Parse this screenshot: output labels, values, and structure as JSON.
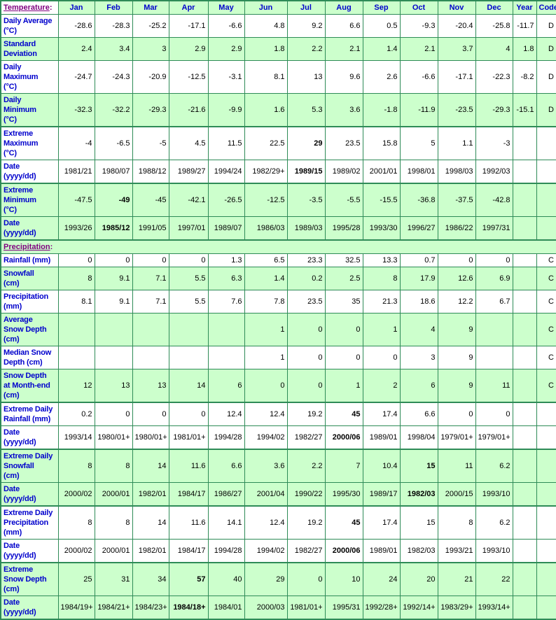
{
  "colors": {
    "border_green": "#2e8b57",
    "cell_green": "#ccffcc",
    "label_blue": "#0000cc",
    "section_purple": "#800080",
    "data_black": "#000000",
    "background_white": "#ffffff"
  },
  "table": {
    "temperature_label": "Temperature",
    "label_suffix": ":",
    "columns": [
      "Jan",
      "Feb",
      "Mar",
      "Apr",
      "May",
      "Jun",
      "Jul",
      "Aug",
      "Sep",
      "Oct",
      "Nov",
      "Dec",
      "Year",
      "Code"
    ],
    "rows": [
      {
        "type": "data",
        "lines": [
          "Daily Average",
          "(°C)"
        ],
        "bg": "white",
        "group_start": false,
        "bold": [],
        "values": [
          "-28.6",
          "-28.3",
          "-25.2",
          "-17.1",
          "-6.6",
          "4.8",
          "9.2",
          "6.6",
          "0.5",
          "-9.3",
          "-20.4",
          "-25.8",
          "-11.7",
          "D"
        ]
      },
      {
        "type": "data",
        "lines": [
          "Standard",
          "Deviation"
        ],
        "bg": "green",
        "group_start": false,
        "bold": [],
        "values": [
          "2.4",
          "3.4",
          "3",
          "2.9",
          "2.9",
          "1.8",
          "2.2",
          "2.1",
          "1.4",
          "2.1",
          "3.7",
          "4",
          "1.8",
          "D"
        ]
      },
      {
        "type": "data",
        "lines": [
          "Daily",
          "Maximum",
          "(°C)"
        ],
        "bg": "white",
        "group_start": false,
        "bold": [],
        "values": [
          "-24.7",
          "-24.3",
          "-20.9",
          "-12.5",
          "-3.1",
          "8.1",
          "13",
          "9.6",
          "2.6",
          "-6.6",
          "-17.1",
          "-22.3",
          "-8.2",
          "D"
        ]
      },
      {
        "type": "data",
        "lines": [
          "Daily",
          "Minimum",
          "(°C)"
        ],
        "bg": "green",
        "group_start": false,
        "bold": [],
        "values": [
          "-32.3",
          "-32.2",
          "-29.3",
          "-21.6",
          "-9.9",
          "1.6",
          "5.3",
          "3.6",
          "-1.8",
          "-11.9",
          "-23.5",
          "-29.3",
          "-15.1",
          "D"
        ]
      },
      {
        "type": "data",
        "lines": [
          "Extreme",
          "Maximum",
          "(°C)"
        ],
        "bg": "white",
        "group_start": true,
        "bold": [
          6
        ],
        "values": [
          "-4",
          "-6.5",
          "-5",
          "4.5",
          "11.5",
          "22.5",
          "29",
          "23.5",
          "15.8",
          "5",
          "1.1",
          "-3",
          "",
          ""
        ]
      },
      {
        "type": "data",
        "lines": [
          "Date",
          "(yyyy/dd)"
        ],
        "bg": "white",
        "group_start": false,
        "bold": [
          6
        ],
        "values": [
          "1981/21",
          "1980/07",
          "1988/12",
          "1989/27",
          "1994/24",
          "1982/29+",
          "1989/15",
          "1989/02",
          "2001/01",
          "1998/01",
          "1998/03",
          "1992/03",
          "",
          ""
        ]
      },
      {
        "type": "data",
        "lines": [
          "Extreme",
          "Minimum",
          "(°C)"
        ],
        "bg": "green",
        "group_start": true,
        "bold": [
          1
        ],
        "values": [
          "-47.5",
          "-49",
          "-45",
          "-42.1",
          "-26.5",
          "-12.5",
          "-3.5",
          "-5.5",
          "-15.5",
          "-36.8",
          "-37.5",
          "-42.8",
          "",
          ""
        ]
      },
      {
        "type": "data",
        "lines": [
          "Date",
          "(yyyy/dd)"
        ],
        "bg": "green",
        "group_start": false,
        "bold": [
          1
        ],
        "values": [
          "1993/26",
          "1985/12",
          "1991/05",
          "1997/01",
          "1989/07",
          "1986/03",
          "1989/03",
          "1995/28",
          "1993/30",
          "1996/27",
          "1986/22",
          "1997/31",
          "",
          ""
        ]
      },
      {
        "type": "section",
        "label": "Precipitation",
        "bg": "green",
        "group_start": true
      },
      {
        "type": "data",
        "lines": [
          "Rainfall (mm)"
        ],
        "bg": "white",
        "group_start": false,
        "bold": [],
        "values": [
          "0",
          "0",
          "0",
          "0",
          "1.3",
          "6.5",
          "23.3",
          "32.5",
          "13.3",
          "0.7",
          "0",
          "0",
          "",
          "C"
        ]
      },
      {
        "type": "data",
        "lines": [
          "Snowfall",
          "(cm)"
        ],
        "bg": "green",
        "group_start": false,
        "bold": [],
        "values": [
          "8",
          "9.1",
          "7.1",
          "5.5",
          "6.3",
          "1.4",
          "0.2",
          "2.5",
          "8",
          "17.9",
          "12.6",
          "6.9",
          "",
          "C"
        ]
      },
      {
        "type": "data",
        "lines": [
          "Precipitation",
          "(mm)"
        ],
        "bg": "white",
        "group_start": false,
        "bold": [],
        "values": [
          "8.1",
          "9.1",
          "7.1",
          "5.5",
          "7.6",
          "7.8",
          "23.5",
          "35",
          "21.3",
          "18.6",
          "12.2",
          "6.7",
          "",
          "C"
        ]
      },
      {
        "type": "data",
        "lines": [
          "Average",
          "Snow Depth",
          "(cm)"
        ],
        "bg": "green",
        "group_start": false,
        "bold": [],
        "values": [
          "",
          "",
          "",
          "",
          "",
          "1",
          "0",
          "0",
          "1",
          "4",
          "9",
          "",
          "",
          "C"
        ]
      },
      {
        "type": "data",
        "lines": [
          "Median Snow",
          "Depth (cm)"
        ],
        "bg": "white",
        "group_start": false,
        "bold": [],
        "values": [
          "",
          "",
          "",
          "",
          "",
          "1",
          "0",
          "0",
          "0",
          "3",
          "9",
          "",
          "",
          "C"
        ]
      },
      {
        "type": "data",
        "lines": [
          "Snow Depth",
          "at Month-end",
          "(cm)"
        ],
        "bg": "green",
        "group_start": false,
        "bold": [],
        "values": [
          "12",
          "13",
          "13",
          "14",
          "6",
          "0",
          "0",
          "1",
          "2",
          "6",
          "9",
          "11",
          "",
          "C"
        ]
      },
      {
        "type": "data",
        "lines": [
          "Extreme Daily",
          "Rainfall (mm)"
        ],
        "bg": "white",
        "group_start": true,
        "bold": [
          7
        ],
        "values": [
          "0.2",
          "0",
          "0",
          "0",
          "12.4",
          "12.4",
          "19.2",
          "45",
          "17.4",
          "6.6",
          "0",
          "0",
          "",
          ""
        ]
      },
      {
        "type": "data",
        "lines": [
          "Date",
          "(yyyy/dd)"
        ],
        "bg": "white",
        "group_start": false,
        "bold": [
          7
        ],
        "values": [
          "1993/14",
          "1980/01+",
          "1980/01+",
          "1981/01+",
          "1994/28",
          "1994/02",
          "1982/27",
          "2000/06",
          "1989/01",
          "1998/04",
          "1979/01+",
          "1979/01+",
          "",
          ""
        ]
      },
      {
        "type": "data",
        "lines": [
          "Extreme Daily",
          "Snowfall",
          "(cm)"
        ],
        "bg": "green",
        "group_start": true,
        "bold": [
          9
        ],
        "values": [
          "8",
          "8",
          "14",
          "11.6",
          "6.6",
          "3.6",
          "2.2",
          "7",
          "10.4",
          "15",
          "11",
          "6.2",
          "",
          ""
        ]
      },
      {
        "type": "data",
        "lines": [
          "Date",
          "(yyyy/dd)"
        ],
        "bg": "green",
        "group_start": false,
        "bold": [
          9
        ],
        "values": [
          "2000/02",
          "2000/01",
          "1982/01",
          "1984/17",
          "1986/27",
          "2001/04",
          "1990/22",
          "1995/30",
          "1989/17",
          "1982/03",
          "2000/15",
          "1993/10",
          "",
          ""
        ]
      },
      {
        "type": "data",
        "lines": [
          "Extreme Daily",
          "Precipitation",
          "(mm)"
        ],
        "bg": "white",
        "group_start": true,
        "bold": [
          7
        ],
        "values": [
          "8",
          "8",
          "14",
          "11.6",
          "14.1",
          "12.4",
          "19.2",
          "45",
          "17.4",
          "15",
          "8",
          "6.2",
          "",
          ""
        ]
      },
      {
        "type": "data",
        "lines": [
          "Date",
          "(yyyy/dd)"
        ],
        "bg": "white",
        "group_start": false,
        "bold": [
          7
        ],
        "values": [
          "2000/02",
          "2000/01",
          "1982/01",
          "1984/17",
          "1994/28",
          "1994/02",
          "1982/27",
          "2000/06",
          "1989/01",
          "1982/03",
          "1993/21",
          "1993/10",
          "",
          ""
        ]
      },
      {
        "type": "data",
        "lines": [
          "Extreme",
          "Snow Depth",
          "(cm)"
        ],
        "bg": "green",
        "group_start": true,
        "bold": [
          3
        ],
        "values": [
          "25",
          "31",
          "34",
          "57",
          "40",
          "29",
          "0",
          "10",
          "24",
          "20",
          "21",
          "22",
          "",
          ""
        ]
      },
      {
        "type": "data",
        "lines": [
          "Date",
          "(yyyy/dd)"
        ],
        "bg": "green",
        "group_start": false,
        "bold": [
          3
        ],
        "values": [
          "1984/19+",
          "1984/21+",
          "1984/23+",
          "1984/18+",
          "1984/01",
          "2000/03",
          "1981/01+",
          "1995/31",
          "1992/28+",
          "1992/14+",
          "1983/29+",
          "1993/14+",
          "",
          ""
        ]
      }
    ]
  }
}
